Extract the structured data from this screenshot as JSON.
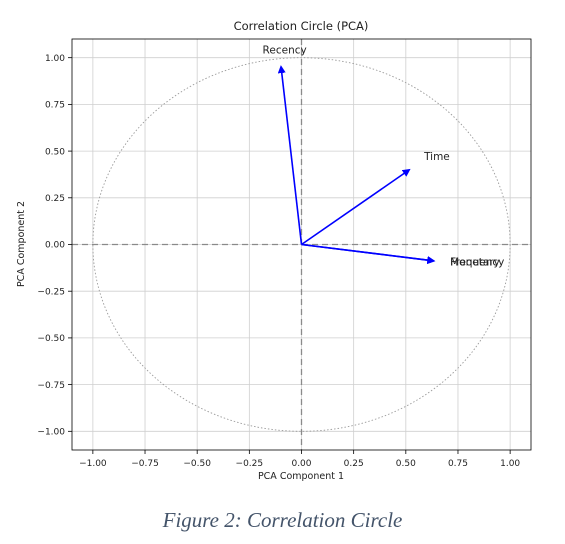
{
  "chart_data": {
    "type": "scatter",
    "subtype": "correlation-circle",
    "title": "Correlation Circle (PCA)",
    "xlabel": "PCA Component 1",
    "ylabel": "PCA Component 2",
    "xlim": [
      -1.1,
      1.1
    ],
    "ylim": [
      -1.1,
      1.1
    ],
    "xticks": [
      "−1.00",
      "−0.75",
      "−0.50",
      "−0.25",
      "0.00",
      "0.25",
      "0.50",
      "0.75",
      "1.00"
    ],
    "yticks": [
      "1.00",
      "0.75",
      "0.50",
      "0.25",
      "0.00",
      "−0.25",
      "−0.50",
      "−0.75",
      "−1.00"
    ],
    "xtick_values": [
      -1,
      -0.75,
      -0.5,
      -0.25,
      0,
      0.25,
      0.5,
      0.75,
      1
    ],
    "ytick_values": [
      1,
      0.75,
      0.5,
      0.25,
      0,
      -0.25,
      -0.5,
      -0.75,
      -1
    ],
    "grid": true,
    "unit_circle": true,
    "arrow_color": "#0000ff",
    "vectors": [
      {
        "name": "Recency",
        "x": -0.1,
        "y": 0.97
      },
      {
        "name": "Time",
        "x": 0.53,
        "y": 0.41
      },
      {
        "name": "Frequency",
        "x": 0.65,
        "y": -0.09
      },
      {
        "name": "Monetary",
        "x": 0.65,
        "y": -0.09
      }
    ]
  },
  "caption": "Figure 2: Correlation Circle"
}
